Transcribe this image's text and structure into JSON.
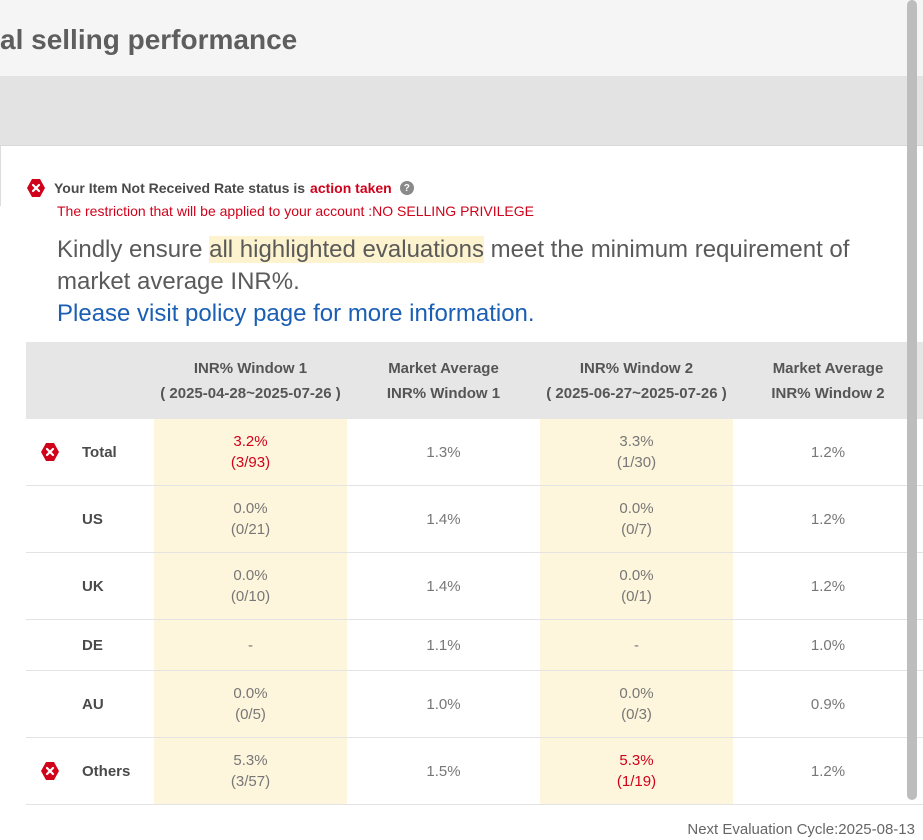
{
  "page": {
    "title": "al selling performance"
  },
  "status": {
    "text": "Your Item Not Received Rate status is",
    "value": "action taken",
    "help_glyph": "?",
    "restriction": "The restriction that will be applied to your account :NO SELLING PRIVILEGE"
  },
  "notice": {
    "prefix": "Kindly ensure ",
    "highlight": "all highlighted evaluations",
    "suffix": " meet the minimum requirement of market average INR%.",
    "link": "Please visit policy page for more information."
  },
  "colors": {
    "error_red": "#d0021b",
    "highlight": "#fdf5dc",
    "link_blue": "#1a5fb4"
  },
  "table": {
    "headers": [
      {
        "line1": "",
        "line2": ""
      },
      {
        "line1": "INR% Window 1",
        "line2": "( 2025-04-28~2025-07-26 )"
      },
      {
        "line1": "Market Average",
        "line2": "INR% Window 1"
      },
      {
        "line1": "INR% Window 2",
        "line2": "( 2025-06-27~2025-07-26 )"
      },
      {
        "line1": "Market Average",
        "line2": "INR% Window 2"
      }
    ],
    "rows": [
      {
        "label": "Total",
        "error_icon": true,
        "w1": "3.2%",
        "w1_count": "(3/93)",
        "w1_red": true,
        "m1": "1.3%",
        "w2": "3.3%",
        "w2_count": "(1/30)",
        "w2_red": false,
        "m2": "1.2%"
      },
      {
        "label": "US",
        "error_icon": false,
        "w1": "0.0%",
        "w1_count": "(0/21)",
        "w1_red": false,
        "m1": "1.4%",
        "w2": "0.0%",
        "w2_count": "(0/7)",
        "w2_red": false,
        "m2": "1.2%"
      },
      {
        "label": "UK",
        "error_icon": false,
        "w1": "0.0%",
        "w1_count": "(0/10)",
        "w1_red": false,
        "m1": "1.4%",
        "w2": "0.0%",
        "w2_count": "(0/1)",
        "w2_red": false,
        "m2": "1.2%"
      },
      {
        "label": "DE",
        "error_icon": false,
        "w1": "-",
        "w1_count": "",
        "w1_red": false,
        "m1": "1.1%",
        "w2": "-",
        "w2_count": "",
        "w2_red": false,
        "m2": "1.0%"
      },
      {
        "label": "AU",
        "error_icon": false,
        "w1": "0.0%",
        "w1_count": "(0/5)",
        "w1_red": false,
        "m1": "1.0%",
        "w2": "0.0%",
        "w2_count": "(0/3)",
        "w2_red": false,
        "m2": "0.9%"
      },
      {
        "label": "Others",
        "error_icon": true,
        "w1": "5.3%",
        "w1_count": "(3/57)",
        "w1_red": false,
        "m1": "1.5%",
        "w2": "5.3%",
        "w2_count": "(1/19)",
        "w2_red": true,
        "m2": "1.2%"
      }
    ]
  },
  "footer": {
    "next_evaluation": "Next Evaluation Cycle:2025-08-13"
  }
}
